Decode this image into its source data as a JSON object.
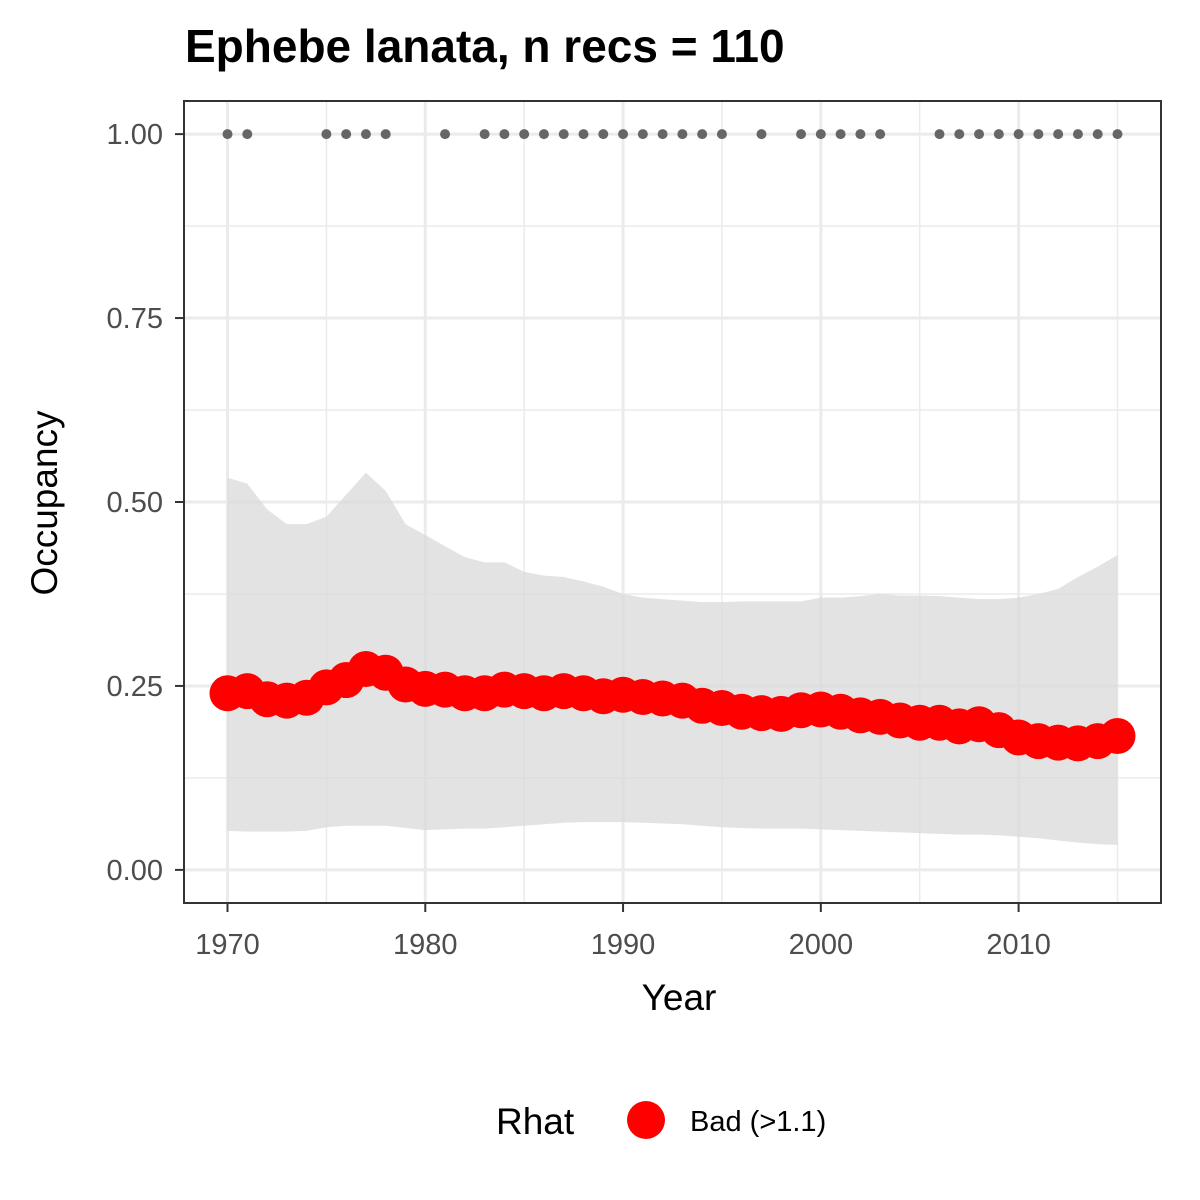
{
  "chart_data": {
    "type": "line",
    "title": "Ephebe lanata, n recs = 110",
    "xlabel": "Year",
    "ylabel": "Occupancy",
    "xlim": [
      1967.8,
      2017.2
    ],
    "ylim": [
      -0.045,
      1.045
    ],
    "x_ticks": [
      1970,
      1980,
      1990,
      2000,
      2010
    ],
    "y_ticks": [
      0.0,
      0.25,
      0.5,
      0.75,
      1.0
    ],
    "x_tick_labels": [
      "1970",
      "1980",
      "1990",
      "2000",
      "2010"
    ],
    "y_tick_labels": [
      "0.00",
      "0.25",
      "0.50",
      "0.75",
      "1.00"
    ],
    "grid": true,
    "series": [
      {
        "kind": "line-with-points",
        "color": "#ff0000",
        "x": [
          1970,
          1971,
          1972,
          1973,
          1974,
          1975,
          1976,
          1977,
          1978,
          1979,
          1980,
          1981,
          1982,
          1983,
          1984,
          1985,
          1986,
          1987,
          1988,
          1989,
          1990,
          1991,
          1992,
          1993,
          1994,
          1995,
          1996,
          1997,
          1998,
          1999,
          2000,
          2001,
          2002,
          2003,
          2004,
          2005,
          2006,
          2007,
          2008,
          2009,
          2010,
          2011,
          2012,
          2013,
          2014,
          2015
        ],
        "values": [
          0.24,
          0.243,
          0.232,
          0.23,
          0.234,
          0.248,
          0.258,
          0.273,
          0.268,
          0.252,
          0.246,
          0.245,
          0.24,
          0.24,
          0.245,
          0.243,
          0.24,
          0.243,
          0.24,
          0.236,
          0.238,
          0.235,
          0.233,
          0.23,
          0.223,
          0.22,
          0.215,
          0.213,
          0.212,
          0.217,
          0.218,
          0.215,
          0.21,
          0.208,
          0.203,
          0.2,
          0.2,
          0.195,
          0.198,
          0.19,
          0.18,
          0.175,
          0.173,
          0.172,
          0.175,
          0.182
        ]
      },
      {
        "kind": "ribbon",
        "color": "#d9d9d9",
        "x": [
          1970,
          1971,
          1972,
          1973,
          1974,
          1975,
          1976,
          1977,
          1978,
          1979,
          1980,
          1981,
          1982,
          1983,
          1984,
          1985,
          1986,
          1987,
          1988,
          1989,
          1990,
          1991,
          1992,
          1993,
          1994,
          1995,
          1996,
          1997,
          1998,
          1999,
          2000,
          2001,
          2002,
          2003,
          2004,
          2005,
          2006,
          2007,
          2008,
          2009,
          2010,
          2011,
          2012,
          2013,
          2014,
          2015
        ],
        "upper": [
          0.533,
          0.525,
          0.49,
          0.47,
          0.47,
          0.48,
          0.51,
          0.54,
          0.515,
          0.47,
          0.455,
          0.44,
          0.425,
          0.418,
          0.418,
          0.405,
          0.4,
          0.398,
          0.392,
          0.385,
          0.375,
          0.37,
          0.368,
          0.366,
          0.364,
          0.364,
          0.365,
          0.365,
          0.365,
          0.365,
          0.37,
          0.37,
          0.372,
          0.375,
          0.373,
          0.373,
          0.372,
          0.37,
          0.368,
          0.368,
          0.37,
          0.375,
          0.382,
          0.398,
          0.412,
          0.428
        ],
        "lower": [
          0.053,
          0.052,
          0.052,
          0.052,
          0.053,
          0.058,
          0.06,
          0.06,
          0.06,
          0.057,
          0.054,
          0.055,
          0.056,
          0.056,
          0.058,
          0.06,
          0.062,
          0.064,
          0.065,
          0.065,
          0.065,
          0.064,
          0.063,
          0.062,
          0.06,
          0.058,
          0.057,
          0.056,
          0.056,
          0.056,
          0.055,
          0.054,
          0.053,
          0.052,
          0.051,
          0.05,
          0.049,
          0.048,
          0.048,
          0.047,
          0.045,
          0.043,
          0.04,
          0.037,
          0.035,
          0.034
        ]
      },
      {
        "kind": "points",
        "color": "#666666",
        "x": [
          1970,
          1971,
          1975,
          1976,
          1977,
          1978,
          1981,
          1983,
          1984,
          1985,
          1986,
          1987,
          1988,
          1989,
          1990,
          1991,
          1992,
          1993,
          1994,
          1995,
          1997,
          1999,
          2000,
          2001,
          2002,
          2003,
          2006,
          2007,
          2008,
          2009,
          2010,
          2011,
          2012,
          2013,
          2014,
          2015
        ],
        "values": [
          1,
          1,
          1,
          1,
          1,
          1,
          1,
          1,
          1,
          1,
          1,
          1,
          1,
          1,
          1,
          1,
          1,
          1,
          1,
          1,
          1,
          1,
          1,
          1,
          1,
          1,
          1,
          1,
          1,
          1,
          1,
          1,
          1,
          1,
          1,
          1
        ]
      }
    ],
    "legend": {
      "position": "bottom",
      "title": "Rhat",
      "entries": [
        {
          "label": "Bad (>1.1)",
          "color": "#ff0000"
        }
      ]
    }
  }
}
